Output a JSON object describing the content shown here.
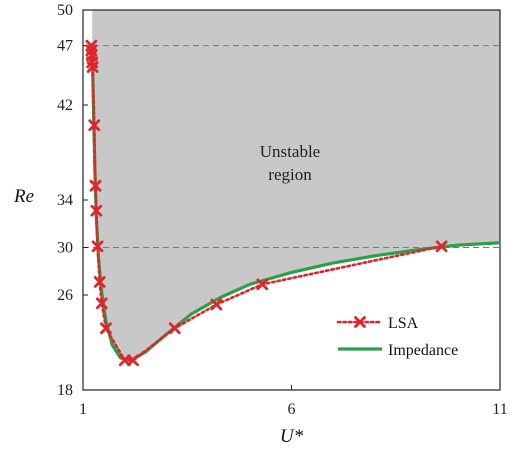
{
  "chart_data": {
    "type": "line",
    "xlabel": "U*",
    "ylabel": "Re",
    "xlim": [
      1,
      11
    ],
    "ylim": [
      18,
      50
    ],
    "xticks": [
      1,
      6,
      11
    ],
    "yticks": [
      18,
      26,
      30,
      34,
      42,
      47,
      50
    ],
    "reference_lines": [
      47,
      30
    ],
    "annotation": {
      "line1": "Unstable",
      "line2": "region"
    },
    "region_fill": "#c8c8c8",
    "legend": {
      "placement": "bottom-right"
    },
    "series": [
      {
        "name": "LSA",
        "style": "dotted-x",
        "color": "#e0242a",
        "x": [
          1.2,
          1.2,
          1.21,
          1.22,
          1.23,
          1.27,
          1.3,
          1.32,
          1.35,
          1.4,
          1.45,
          1.55,
          2.0,
          2.2,
          3.2,
          4.2,
          5.3,
          9.6
        ],
        "y": [
          47,
          46.6,
          46.2,
          45.6,
          45.2,
          40.3,
          35.2,
          33.1,
          30.1,
          27.1,
          25.3,
          23.2,
          20.5,
          20.5,
          23.2,
          25.2,
          26.9,
          30.1
        ]
      },
      {
        "name": "Impedance",
        "style": "solid",
        "color": "#2ca048",
        "x": [
          1.22,
          1.25,
          1.28,
          1.32,
          1.37,
          1.45,
          1.55,
          1.7,
          1.9,
          2.15,
          2.5,
          3.0,
          3.6,
          4.3,
          5.0,
          6.0,
          7.0,
          8.0,
          9.0,
          10.0,
          11.0
        ],
        "y": [
          47,
          42,
          37,
          32.5,
          29.2,
          26.2,
          23.8,
          21.8,
          20.7,
          20.5,
          21.2,
          22.7,
          24.4,
          25.8,
          26.9,
          27.9,
          28.7,
          29.3,
          29.8,
          30.2,
          30.4
        ]
      }
    ]
  }
}
